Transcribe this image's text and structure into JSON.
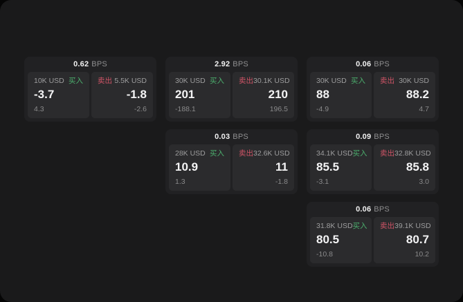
{
  "labels": {
    "bps_unit": "BPS",
    "buy": "买入",
    "sell": "卖出"
  },
  "colors": {
    "buy": "#4caf6e",
    "sell": "#cf5466",
    "window_bg": "#1a1a1b",
    "card_bg": "#212123",
    "panel_bg": "#2b2b2d"
  },
  "cards": [
    {
      "row": 1,
      "col": 1,
      "bps": "0.62",
      "buy": {
        "notional": "10K USD",
        "price": "-3.7",
        "delta": "4.3"
      },
      "sell": {
        "notional": "5.5K USD",
        "price": "-1.8",
        "delta": "-2.6"
      }
    },
    {
      "row": 1,
      "col": 2,
      "bps": "2.92",
      "buy": {
        "notional": "30K USD",
        "price": "201",
        "delta": "-188.1"
      },
      "sell": {
        "notional": "30.1K USD",
        "price": "210",
        "delta": "196.5"
      }
    },
    {
      "row": 1,
      "col": 3,
      "bps": "0.06",
      "buy": {
        "notional": "30K USD",
        "price": "88",
        "delta": "-4.9"
      },
      "sell": {
        "notional": "30K USD",
        "price": "88.2",
        "delta": "4.7"
      }
    },
    {
      "row": 2,
      "col": 2,
      "bps": "0.03",
      "buy": {
        "notional": "28K USD",
        "price": "10.9",
        "delta": "1.3"
      },
      "sell": {
        "notional": "32.6K USD",
        "price": "11",
        "delta": "-1.8"
      }
    },
    {
      "row": 2,
      "col": 3,
      "bps": "0.09",
      "buy": {
        "notional": "34.1K USD",
        "price": "85.5",
        "delta": "-3.1"
      },
      "sell": {
        "notional": "32.8K USD",
        "price": "85.8",
        "delta": "3.0"
      }
    },
    {
      "row": 3,
      "col": 3,
      "bps": "0.06",
      "buy": {
        "notional": "31.8K USD",
        "price": "80.5",
        "delta": "-10.8"
      },
      "sell": {
        "notional": "39.1K USD",
        "price": "80.7",
        "delta": "10.2"
      }
    }
  ]
}
